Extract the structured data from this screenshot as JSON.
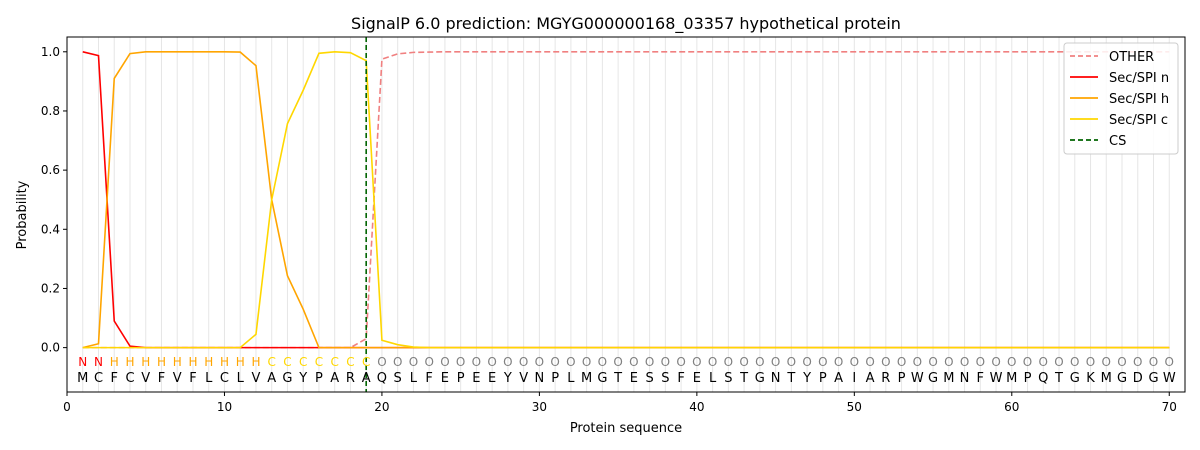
{
  "chart_data": {
    "type": "line",
    "title": "SignalP 6.0 prediction: MGYG000000168_03357 hypothetical protein",
    "xlabel": "Protein sequence",
    "ylabel": "Probability",
    "xlim": [
      0,
      71
    ],
    "ylim": [
      -0.15,
      1.05
    ],
    "x_ticks": [
      0,
      10,
      20,
      30,
      40,
      50,
      60,
      70
    ],
    "y_ticks": [
      0.0,
      0.2,
      0.4,
      0.6,
      0.8,
      1.0
    ],
    "x_tick_labels": [
      "0",
      "10",
      "20",
      "30",
      "40",
      "50",
      "60",
      "70"
    ],
    "y_tick_labels": [
      "0.0",
      "0.2",
      "0.4",
      "0.6",
      "0.8",
      "1.0"
    ],
    "grid": "vertical lines at every residue",
    "legend_position": "top-right",
    "sequence": [
      "M",
      "C",
      "F",
      "C",
      "V",
      "F",
      "V",
      "F",
      "L",
      "C",
      "L",
      "V",
      "A",
      "G",
      "Y",
      "P",
      "A",
      "R",
      "A",
      "Q",
      "S",
      "L",
      "F",
      "E",
      "P",
      "E",
      "E",
      "Y",
      "V",
      "N",
      "P",
      "L",
      "M",
      "G",
      "T",
      "E",
      "S",
      "S",
      "F",
      "E",
      "L",
      "S",
      "T",
      "G",
      "N",
      "T",
      "Y",
      "P",
      "A",
      "I",
      "A",
      "R",
      "P",
      "W",
      "G",
      "M",
      "N",
      "F",
      "W",
      "M",
      "P",
      "Q",
      "T",
      "G",
      "K",
      "M",
      "G",
      "D",
      "G",
      "W"
    ],
    "labels": [
      "N",
      "N",
      "H",
      "H",
      "H",
      "H",
      "H",
      "H",
      "H",
      "H",
      "H",
      "H",
      "C",
      "C",
      "C",
      "C",
      "C",
      "C",
      "C",
      "O",
      "O",
      "O",
      "O",
      "O",
      "O",
      "O",
      "O",
      "O",
      "O",
      "O",
      "O",
      "O",
      "O",
      "O",
      "O",
      "O",
      "O",
      "O",
      "O",
      "O",
      "O",
      "O",
      "O",
      "O",
      "O",
      "O",
      "O",
      "O",
      "O",
      "O",
      "O",
      "O",
      "O",
      "O",
      "O",
      "O",
      "O",
      "O",
      "O",
      "O",
      "O",
      "O",
      "O",
      "O",
      "O",
      "O",
      "O",
      "O",
      "O",
      "O"
    ],
    "label_colors": {
      "N": "#ff0000",
      "H": "#ffa500",
      "C": "#ffd700",
      "O": "#808080"
    },
    "series": [
      {
        "name": "OTHER",
        "color": "#f08080",
        "dash": "dashed",
        "values": [
          0.0,
          0.0,
          0.0,
          0.0,
          0.0,
          0.0,
          0.0,
          0.0,
          0.0,
          0.0,
          0.0,
          0.0,
          0.0,
          0.0,
          0.0,
          0.0,
          0.0,
          0.0,
          0.03,
          0.975,
          0.993,
          0.998,
          0.999,
          1.0,
          1.0,
          1.0,
          1.0,
          1.0,
          1.0,
          1.0,
          1.0,
          1.0,
          1.0,
          1.0,
          1.0,
          1.0,
          1.0,
          1.0,
          1.0,
          1.0,
          1.0,
          1.0,
          1.0,
          1.0,
          1.0,
          1.0,
          1.0,
          1.0,
          1.0,
          1.0,
          1.0,
          1.0,
          1.0,
          1.0,
          1.0,
          1.0,
          1.0,
          1.0,
          1.0,
          1.0,
          1.0,
          1.0,
          1.0,
          1.0,
          1.0,
          1.0,
          1.0,
          1.0,
          1.0,
          1.0
        ]
      },
      {
        "name": "Sec/SPI n",
        "color": "#ff0000",
        "dash": "solid",
        "values": [
          1.0,
          0.987,
          0.09,
          0.005,
          0.0,
          0.0,
          0.0,
          0.0,
          0.0,
          0.0,
          0.0,
          0.0,
          0.0,
          0.0,
          0.0,
          0.0,
          0.0,
          0.0,
          0.0,
          0.0,
          0.0,
          0.0,
          0.0,
          0.0,
          0.0,
          0.0,
          0.0,
          0.0,
          0.0,
          0.0,
          0.0,
          0.0,
          0.0,
          0.0,
          0.0,
          0.0,
          0.0,
          0.0,
          0.0,
          0.0,
          0.0,
          0.0,
          0.0,
          0.0,
          0.0,
          0.0,
          0.0,
          0.0,
          0.0,
          0.0,
          0.0,
          0.0,
          0.0,
          0.0,
          0.0,
          0.0,
          0.0,
          0.0,
          0.0,
          0.0,
          0.0,
          0.0,
          0.0,
          0.0,
          0.0,
          0.0,
          0.0,
          0.0,
          0.0,
          0.0
        ]
      },
      {
        "name": "Sec/SPI h",
        "color": "#ffa500",
        "dash": "solid",
        "values": [
          0.0,
          0.013,
          0.91,
          0.994,
          1.0,
          1.0,
          1.0,
          1.0,
          1.0,
          1.0,
          0.999,
          0.953,
          0.5,
          0.243,
          0.13,
          0.0,
          0.0,
          0.0,
          0.0,
          0.0,
          0.0,
          0.0,
          0.0,
          0.0,
          0.0,
          0.0,
          0.0,
          0.0,
          0.0,
          0.0,
          0.0,
          0.0,
          0.0,
          0.0,
          0.0,
          0.0,
          0.0,
          0.0,
          0.0,
          0.0,
          0.0,
          0.0,
          0.0,
          0.0,
          0.0,
          0.0,
          0.0,
          0.0,
          0.0,
          0.0,
          0.0,
          0.0,
          0.0,
          0.0,
          0.0,
          0.0,
          0.0,
          0.0,
          0.0,
          0.0,
          0.0,
          0.0,
          0.0,
          0.0,
          0.0,
          0.0,
          0.0,
          0.0,
          0.0,
          0.0
        ]
      },
      {
        "name": "Sec/SPI c",
        "color": "#ffd700",
        "dash": "solid",
        "values": [
          0.0,
          0.0,
          0.0,
          0.0,
          0.0,
          0.0,
          0.0,
          0.0,
          0.0,
          0.0,
          0.0,
          0.045,
          0.5,
          0.757,
          0.87,
          0.995,
          1.0,
          0.997,
          0.97,
          0.025,
          0.01,
          0.002,
          0.0,
          0.0,
          0.0,
          0.0,
          0.0,
          0.0,
          0.0,
          0.0,
          0.0,
          0.0,
          0.0,
          0.0,
          0.0,
          0.0,
          0.0,
          0.0,
          0.0,
          0.0,
          0.0,
          0.0,
          0.0,
          0.0,
          0.0,
          0.0,
          0.0,
          0.0,
          0.0,
          0.0,
          0.0,
          0.0,
          0.0,
          0.0,
          0.0,
          0.0,
          0.0,
          0.0,
          0.0,
          0.0,
          0.0,
          0.0,
          0.0,
          0.0,
          0.0,
          0.0,
          0.0,
          0.0,
          0.0,
          0.0
        ]
      }
    ],
    "cs_line": {
      "name": "CS",
      "x": 19,
      "color": "#006400",
      "dash": "dashed"
    }
  }
}
